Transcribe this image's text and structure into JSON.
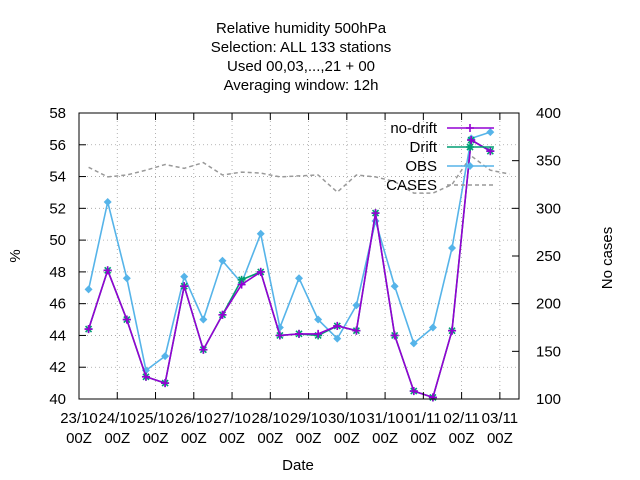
{
  "chart_data": {
    "type": "line",
    "title_lines": [
      "Relative humidity 500hPa",
      "Selection: ALL    133 stations",
      "Used  00,03,...,21  + 00",
      "Averaging window: 12h"
    ],
    "xlabel": "Date",
    "ylabel": "%",
    "y2label": "No cases",
    "ylim": [
      40,
      58
    ],
    "y2lim": [
      100,
      400
    ],
    "yticks": [
      40,
      42,
      44,
      46,
      48,
      50,
      52,
      54,
      56,
      58
    ],
    "y2ticks": [
      100,
      150,
      200,
      250,
      300,
      350,
      400
    ],
    "xlim": [
      "2023-10-23 00Z",
      "2023-11-03 12Z"
    ],
    "xtick_labels": [
      {
        "day": "23/10",
        "hour": "00Z"
      },
      {
        "day": "24/10",
        "hour": "00Z"
      },
      {
        "day": "25/10",
        "hour": "00Z"
      },
      {
        "day": "26/10",
        "hour": "00Z"
      },
      {
        "day": "27/10",
        "hour": "00Z"
      },
      {
        "day": "28/10",
        "hour": "00Z"
      },
      {
        "day": "29/10",
        "hour": "00Z"
      },
      {
        "day": "30/10",
        "hour": "00Z"
      },
      {
        "day": "31/10",
        "hour": "00Z"
      },
      {
        "day": "01/11",
        "hour": "00Z"
      },
      {
        "day": "02/11",
        "hour": "00Z"
      },
      {
        "day": "03/11",
        "hour": "00Z"
      }
    ],
    "grid": true,
    "legend_position": "top-right",
    "x": [
      "2023-10-23 06Z",
      "2023-10-23 18Z",
      "2023-10-24 06Z",
      "2023-10-24 18Z",
      "2023-10-25 06Z",
      "2023-10-25 18Z",
      "2023-10-26 06Z",
      "2023-10-26 18Z",
      "2023-10-27 06Z",
      "2023-10-27 18Z",
      "2023-10-28 06Z",
      "2023-10-28 18Z",
      "2023-10-29 06Z",
      "2023-10-29 18Z",
      "2023-10-30 06Z",
      "2023-10-30 18Z",
      "2023-10-31 06Z",
      "2023-10-31 18Z",
      "2023-11-01 06Z",
      "2023-11-01 18Z",
      "2023-11-02 06Z",
      "2023-11-02 18Z",
      "2023-11-03 06Z"
    ],
    "series": [
      {
        "name": "no-drift",
        "color": "#9400d3",
        "axis": "y1",
        "marker": "plus",
        "values": [
          44.4,
          48.1,
          45.0,
          41.4,
          41.0,
          47.1,
          43.1,
          45.3,
          47.2,
          48.0,
          44.0,
          44.1,
          44.1,
          44.6,
          44.3,
          51.7,
          44.0,
          40.5,
          40.1,
          44.3,
          56.3,
          55.6,
          null
        ]
      },
      {
        "name": "Drift",
        "color": "#009e73",
        "axis": "y1",
        "marker": "star",
        "values": [
          44.4,
          48.1,
          45.0,
          41.4,
          41.0,
          47.1,
          43.1,
          45.3,
          47.5,
          48.0,
          44.0,
          44.1,
          44.0,
          44.6,
          44.3,
          51.7,
          44.0,
          40.5,
          40.1,
          44.3,
          56.3,
          55.6,
          null
        ]
      },
      {
        "name": "OBS",
        "color": "#56b4e9",
        "axis": "y1",
        "marker": "diamond",
        "values": [
          46.9,
          52.4,
          47.6,
          41.8,
          42.7,
          47.7,
          45.0,
          48.7,
          47.3,
          50.4,
          44.5,
          47.6,
          45.0,
          43.8,
          45.9,
          51.2,
          47.1,
          43.5,
          44.5,
          49.5,
          56.4,
          56.8,
          null
        ]
      },
      {
        "name": "CASES",
        "color": "#999999",
        "axis": "y2",
        "dashed": true,
        "values": [
          343,
          333,
          335,
          340,
          346,
          342,
          348,
          335,
          338,
          337,
          333,
          334,
          335,
          317,
          335,
          333,
          328,
          316,
          316,
          325,
          355,
          340,
          336
        ]
      }
    ]
  }
}
